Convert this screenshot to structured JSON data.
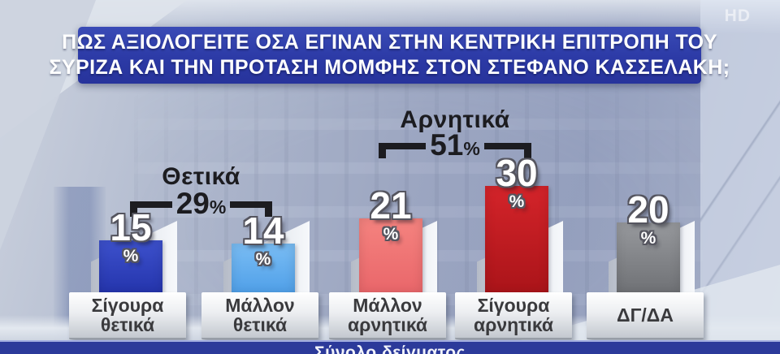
{
  "page": {
    "watermark": "HD"
  },
  "header": {
    "title_line1": "ΠΩΣ ΑΞΙΟΛΟΓΕΙΤΕ ΟΣΑ ΕΓΙΝΑΝ ΣΤΗΝ ΚΕΝΤΡΙΚΗ ΕΠΙΤΡΟΠΗ ΤΟΥ",
    "title_line2": "ΣΥΡΙΖΑ ΚΑΙ ΤΗΝ ΠΡΟΤΑΣΗ ΜΟΜΦΗΣ ΣΤΟΝ ΣΤΕΦΑΝΟ ΚΑΣΣΕΛΑΚΗ;"
  },
  "chart_data": {
    "type": "bar",
    "title": "ΠΩΣ ΑΞΙΟΛΟΓΕΙΤΕ ΟΣΑ ΕΓΙΝΑΝ ΣΤΗΝ ΚΕΝΤΡΙΚΗ ΕΠΙΤΡΟΠΗ ΤΟΥ ΣΥΡΙΖΑ ΚΑΙ ΤΗΝ ΠΡΟΤΑΣΗ ΜΟΜΦΗΣ ΣΤΟΝ ΣΤΕΦΑΝΟ ΚΑΣΣΕΛΑΚΗ;",
    "unit": "%",
    "categories": [
      "Σίγουρα θετικά",
      "Μάλλον θετικά",
      "Μάλλον αρνητικά",
      "Σίγουρα αρνητικά",
      "ΔΓ/ΔΑ"
    ],
    "values": [
      15,
      14,
      21,
      30,
      20
    ],
    "bar_colors": [
      [
        "#3d51cc",
        "#2434ac"
      ],
      [
        "#7abdf4",
        "#4f9fe8"
      ],
      [
        "#f5837f",
        "#e9666a"
      ],
      [
        "#d4242a",
        "#aa1419"
      ],
      [
        "#97999d",
        "#6f7175"
      ]
    ],
    "groups": [
      {
        "label": "Θετικά",
        "value": 29,
        "bars": [
          "Σίγουρα θετικά",
          "Μάλλον θετικά"
        ]
      },
      {
        "label": "Αρνητικά",
        "value": 51,
        "bars": [
          "Μάλλον αρνητικά",
          "Σίγουρα αρνητικά"
        ]
      }
    ],
    "axes": "none",
    "legend": "none",
    "footer": "Σύνολο δείγματος"
  }
}
